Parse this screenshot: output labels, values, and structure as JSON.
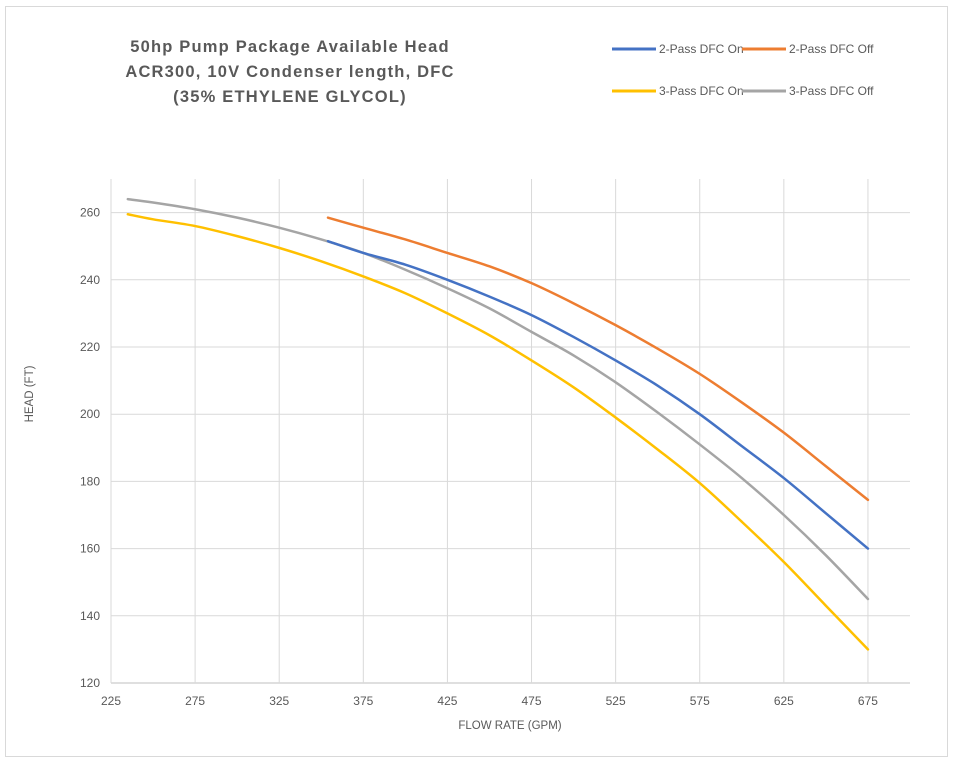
{
  "chart_data": {
    "type": "line",
    "title_lines": [
      "50hp Pump Package Available Head",
      "ACR300, 10V Condenser length, DFC",
      "(35% ETHYLENE GLYCOL)"
    ],
    "xlabel": "FLOW RATE (GPM)",
    "ylabel": "HEAD (FT)",
    "xlim": [
      225,
      700
    ],
    "ylim": [
      120,
      270
    ],
    "x_ticks": [
      225,
      275,
      325,
      375,
      425,
      475,
      525,
      575,
      625,
      675
    ],
    "y_ticks": [
      120,
      140,
      160,
      180,
      200,
      220,
      240,
      260
    ],
    "grid": true,
    "legend_position": "top-right",
    "series": [
      {
        "name": "2-Pass DFC On",
        "color": "#4472C4",
        "x": [
          354,
          375,
          400,
          425,
          450,
          475,
          500,
          525,
          550,
          575,
          600,
          625,
          650,
          675
        ],
        "y": [
          251.5,
          248,
          244.5,
          240,
          235,
          229.5,
          223,
          216,
          208.5,
          200,
          190.5,
          181,
          170.5,
          160
        ]
      },
      {
        "name": "2-Pass DFC Off",
        "color": "#ED7D31",
        "x": [
          354,
          375,
          400,
          425,
          450,
          475,
          500,
          525,
          550,
          575,
          600,
          625,
          650,
          675
        ],
        "y": [
          258.5,
          255.5,
          252,
          248,
          244,
          239,
          233,
          226.5,
          219.5,
          212,
          203.5,
          194.5,
          184.5,
          174.5
        ]
      },
      {
        "name": "3-Pass DFC On",
        "color": "#FFC000",
        "x": [
          235,
          250,
          275,
          300,
          325,
          350,
          375,
          400,
          425,
          450,
          475,
          500,
          525,
          550,
          575,
          600,
          625,
          650,
          675
        ],
        "y": [
          259.5,
          258,
          256,
          253,
          249.5,
          245.5,
          241,
          236,
          230,
          223.5,
          216,
          208,
          199,
          189.5,
          179.5,
          168,
          156,
          143,
          130
        ]
      },
      {
        "name": "3-Pass DFC Off",
        "color": "#A5A5A5",
        "x": [
          235,
          250,
          275,
          300,
          325,
          350,
          375,
          400,
          425,
          450,
          475,
          500,
          525,
          550,
          575,
          600,
          625,
          650,
          675
        ],
        "y": [
          264,
          263,
          261,
          258.5,
          255.5,
          252,
          248,
          243,
          237.5,
          231.5,
          224.5,
          217.5,
          209.5,
          200.5,
          191,
          181,
          170,
          158,
          145
        ]
      }
    ]
  }
}
